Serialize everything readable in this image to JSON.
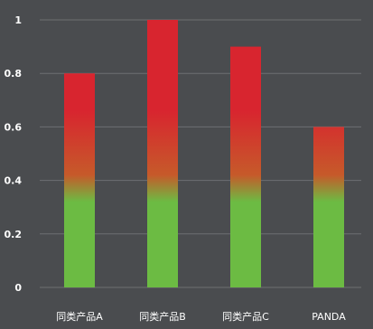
{
  "chart_data": {
    "type": "bar",
    "categories": [
      "同类产品A",
      "同类产品B",
      "同类产品C",
      "PANDA"
    ],
    "values": [
      0.8,
      1.0,
      0.9,
      0.6
    ],
    "y_ticks": [
      "0",
      "0.2",
      "0.4",
      "0.6",
      "0.8",
      "1"
    ],
    "ylim": [
      0,
      1
    ],
    "grid": true,
    "legend": "none",
    "colors": {
      "background": "#4a4c4f",
      "gridline": "#6d6f72",
      "axis_text": "#ffffff",
      "bar_top": "#d8252f",
      "bar_mid": "#c65a2a",
      "bar_bottom": "#6cbb43"
    }
  }
}
